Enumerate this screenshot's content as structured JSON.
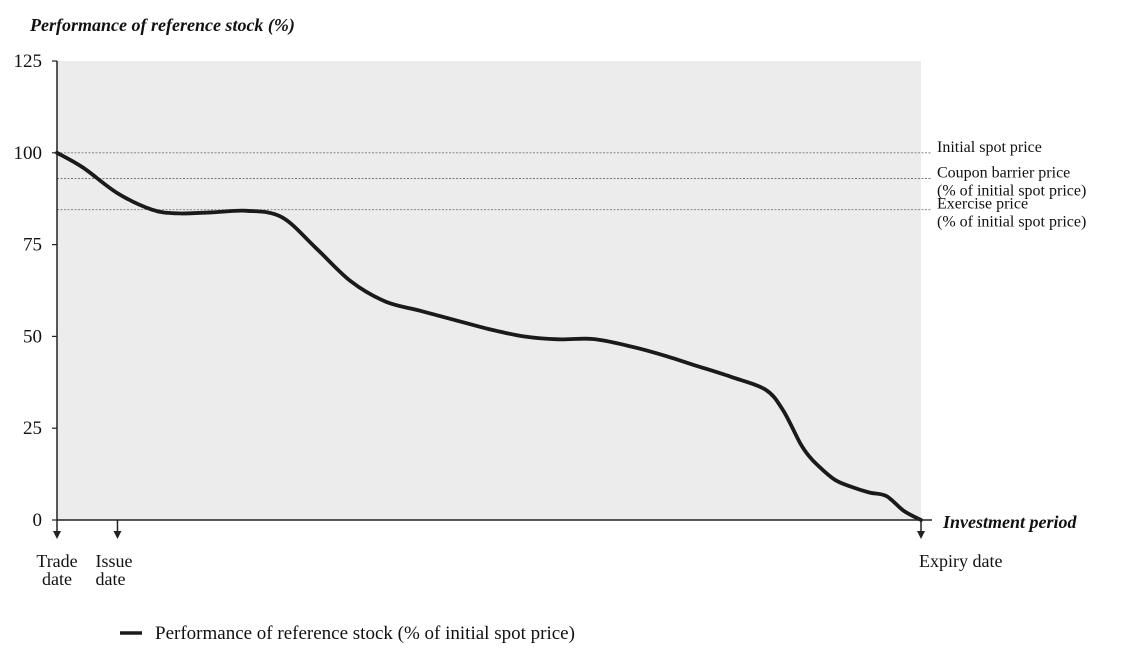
{
  "chart_data": {
    "type": "line",
    "title": "Performance of reference stock (%)",
    "xlabel": "Investment period",
    "ylabel": "Performance of reference stock (%)",
    "ylim": [
      0,
      125
    ],
    "xlim": [
      0,
      100
    ],
    "yticks": [
      0,
      25,
      50,
      75,
      100,
      125
    ],
    "grid": false,
    "background": "#ececec",
    "line_color": "#1a1a1a",
    "reference_lines": [
      {
        "value": 100,
        "label_lines": [
          "Initial spot price"
        ]
      },
      {
        "value": 93,
        "label_lines": [
          "Coupon barrier price",
          "(% of initial spot price)"
        ]
      },
      {
        "value": 84.5,
        "label_lines": [
          "Exercise price",
          "(% of initial spot price)"
        ]
      }
    ],
    "events": [
      {
        "x": 0,
        "label_lines": [
          "Trade",
          "date"
        ]
      },
      {
        "x": 7,
        "label_lines": [
          "Issue",
          "date"
        ]
      },
      {
        "x": 100,
        "label_lines": [
          "Expiry date"
        ]
      }
    ],
    "series": [
      {
        "name": "Performance of reference stock (% of initial spot price)",
        "x": [
          0,
          3,
          7,
          11,
          14,
          18,
          22,
          26,
          30,
          34,
          38,
          42,
          46,
          50,
          54,
          58,
          62,
          66,
          70,
          74,
          78,
          82,
          84,
          86,
          87,
          88,
          90,
          92,
          94,
          96,
          98,
          100
        ],
        "y": [
          100,
          96,
          89,
          84.5,
          83.5,
          83.8,
          84.2,
          82.5,
          74,
          65,
          59.5,
          57,
          54.5,
          52,
          50,
          49.2,
          49.3,
          47.5,
          45,
          42,
          39,
          35.5,
          30,
          21,
          17.5,
          15,
          11,
          9,
          7.5,
          6.5,
          2.5,
          0
        ]
      }
    ]
  },
  "legend": {
    "label": "Performance of reference stock (% of initial spot price)"
  }
}
